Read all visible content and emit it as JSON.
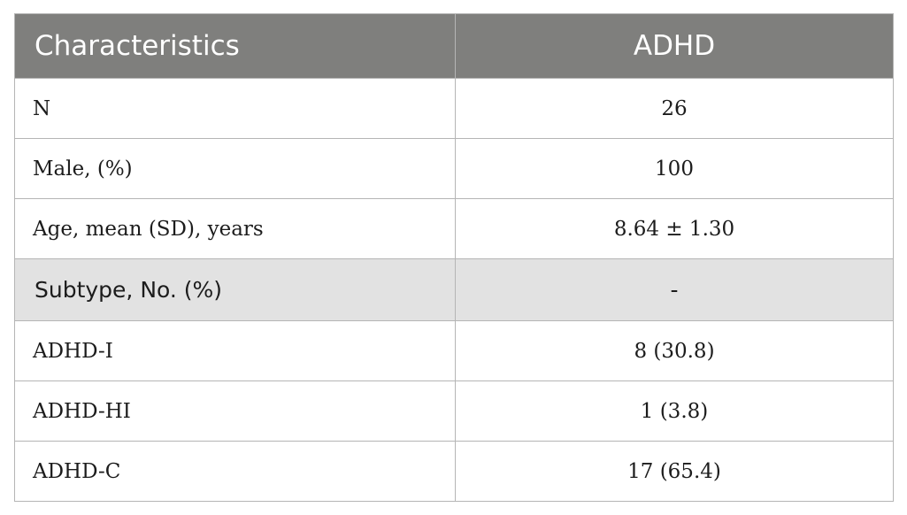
{
  "table": {
    "headers": [
      "Characteristics",
      "ADHD"
    ],
    "rows": [
      {
        "label": "N",
        "value": "26"
      },
      {
        "label": "Male, (%)",
        "value": "100"
      },
      {
        "label": "Age, mean (SD), years",
        "value": "8.64 ± 1.30"
      },
      {
        "label": "Subtype, No. (%)",
        "value": "-"
      },
      {
        "label": "ADHD-I",
        "value": "8 (30.8)"
      },
      {
        "label": "ADHD-HI",
        "value": "1 (3.8)"
      },
      {
        "label": "ADHD-C",
        "value": "17 (65.4)"
      }
    ]
  },
  "colors": {
    "header_bg": "#7f7f7d",
    "section_bg": "#e2e2e2",
    "border": "#b5b5b5"
  }
}
